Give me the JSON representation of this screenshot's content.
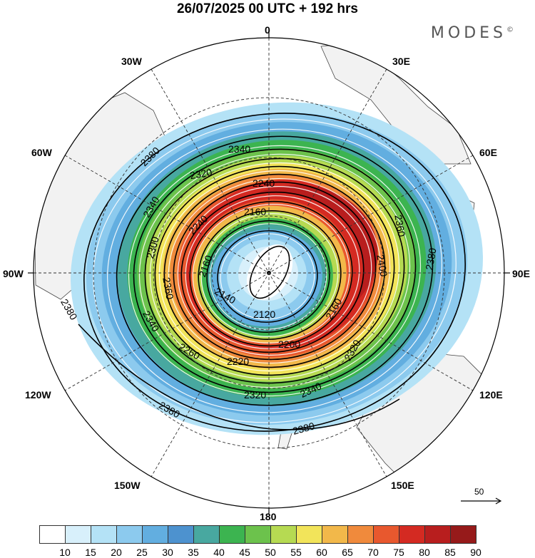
{
  "title": "26/07/2025  00 UTC  + 192 hrs",
  "brand": "MODES",
  "brand_mark": "©",
  "longitude_labels": {
    "top": "0",
    "e30": "30E",
    "e60": "60E",
    "e90": "90E",
    "e120": "120E",
    "e150": "150E",
    "bottom": "180",
    "w150": "150W",
    "w120": "120W",
    "w90": "90W",
    "w60": "60W",
    "w30": "30W"
  },
  "contour_labels": [
    "2380",
    "2340",
    "2320",
    "2240",
    "2160",
    "2360",
    "2380",
    "2400",
    "2380",
    "2340",
    "2300",
    "2240",
    "2160",
    "2140",
    "2120",
    "2200",
    "2160",
    "2320",
    "2340",
    "2380",
    "2320",
    "2220",
    "2260",
    "2340",
    "2380",
    "2360"
  ],
  "reference_vector": {
    "value": "50"
  },
  "colorbar": {
    "ticks": [
      "10",
      "15",
      "20",
      "25",
      "30",
      "35",
      "40",
      "45",
      "50",
      "55",
      "60",
      "65",
      "70",
      "75",
      "80",
      "85",
      "90"
    ],
    "colors": [
      "#ffffff",
      "#d8f0fb",
      "#b4e2f6",
      "#8ccaee",
      "#62aee0",
      "#4d92cf",
      "#48a8a0",
      "#3cb450",
      "#6cc24c",
      "#b6da52",
      "#f2e45a",
      "#f2b84a",
      "#f08a3c",
      "#e8582e",
      "#d42a22",
      "#b81e1e",
      "#961a1a"
    ]
  }
}
